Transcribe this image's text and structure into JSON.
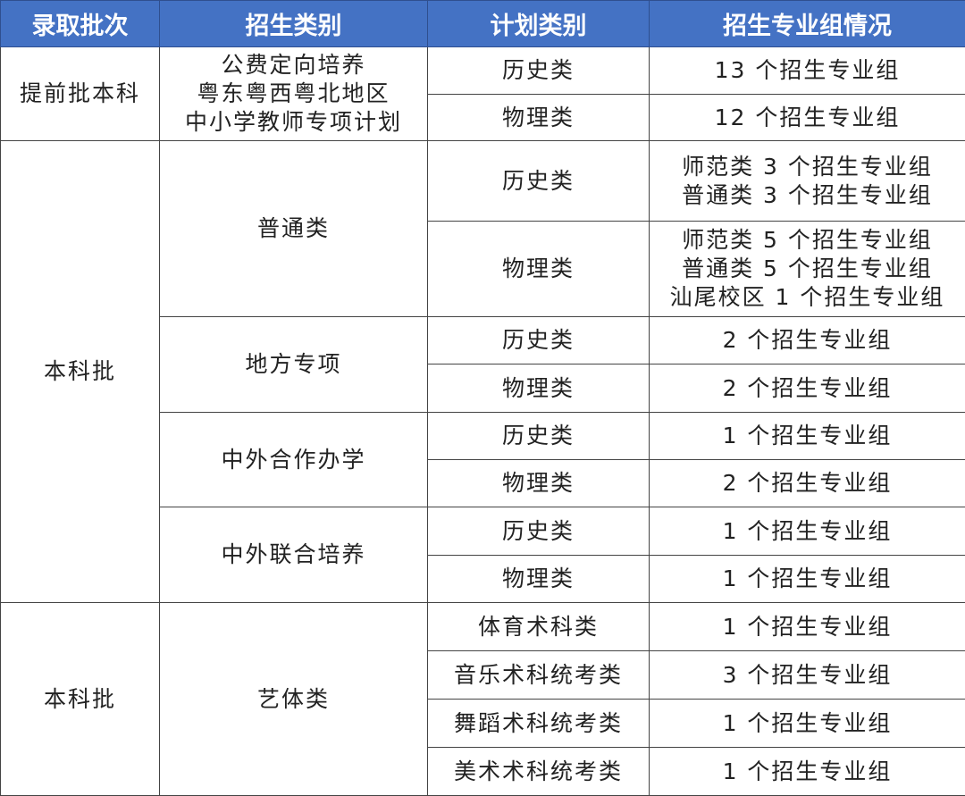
{
  "header_color": "#4472c4",
  "headers": [
    "录取批次",
    "招生类别",
    "计划类别",
    "招生专业组情况"
  ],
  "batches": [
    {
      "name": [
        "提前批本科"
      ],
      "categories": [
        {
          "name": [
            "公费定向培养",
            "粤东粤西粤北地区",
            "中小学教师专项计划"
          ],
          "plans": [
            {
              "type": "历史类",
              "groups": [
                "13 个招生专业组"
              ]
            },
            {
              "type": "物理类",
              "groups": [
                "12 个招生专业组"
              ]
            }
          ]
        }
      ]
    },
    {
      "name": [
        "本科批"
      ],
      "categories": [
        {
          "name": [
            "普通类"
          ],
          "plans": [
            {
              "type": "历史类",
              "groups": [
                "师范类 3 个招生专业组",
                "普通类 3 个招生专业组"
              ]
            },
            {
              "type": "物理类",
              "groups": [
                "师范类 5 个招生专业组",
                "普通类 5 个招生专业组",
                "汕尾校区 1 个招生专业组"
              ]
            }
          ]
        },
        {
          "name": [
            "地方专项"
          ],
          "plans": [
            {
              "type": "历史类",
              "groups": [
                "2 个招生专业组"
              ]
            },
            {
              "type": "物理类",
              "groups": [
                "2 个招生专业组"
              ]
            }
          ]
        },
        {
          "name": [
            "中外合作办学"
          ],
          "plans": [
            {
              "type": "历史类",
              "groups": [
                "1 个招生专业组"
              ]
            },
            {
              "type": "物理类",
              "groups": [
                "2 个招生专业组"
              ]
            }
          ]
        },
        {
          "name": [
            "中外联合培养"
          ],
          "plans": [
            {
              "type": "历史类",
              "groups": [
                "1 个招生专业组"
              ]
            },
            {
              "type": "物理类",
              "groups": [
                "1 个招生专业组"
              ]
            }
          ]
        }
      ]
    },
    {
      "name": [
        "本科批"
      ],
      "categories": [
        {
          "name": [
            "艺体类"
          ],
          "plans": [
            {
              "type": "体育术科类",
              "groups": [
                "1 个招生专业组"
              ]
            },
            {
              "type": "音乐术科统考类",
              "groups": [
                "3 个招生专业组"
              ]
            },
            {
              "type": "舞蹈术科统考类",
              "groups": [
                "1 个招生专业组"
              ]
            },
            {
              "type": "美术术科统考类",
              "groups": [
                "1 个招生专业组"
              ]
            }
          ]
        }
      ]
    }
  ]
}
